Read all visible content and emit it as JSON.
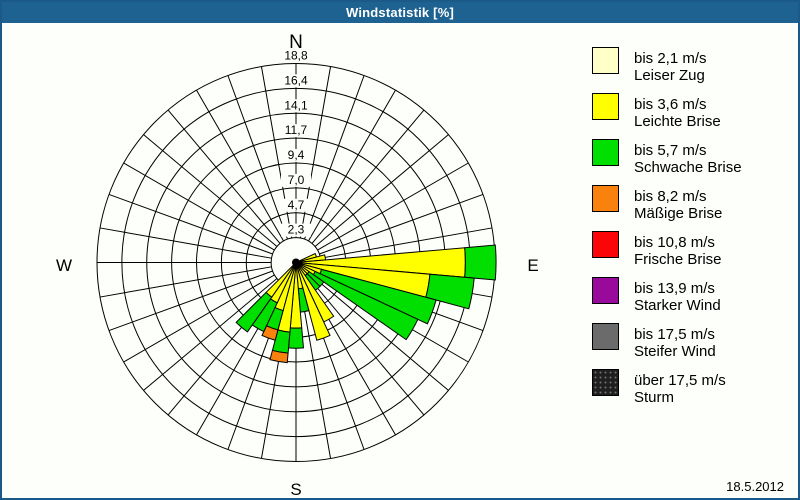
{
  "window": {
    "title": "Windstatistik [%]",
    "date": "18.5.2012"
  },
  "colors": {
    "titlebar": "#1D6291",
    "frame_border": "#1B5A88",
    "background": "#FDFFFB",
    "grid": "#000000",
    "text": "#000000"
  },
  "chart_data": {
    "type": "windrose-stacked-polar-bar",
    "title": "Windstatistik [%]",
    "units": "percent",
    "sector_width_deg": 10,
    "grid": {
      "ring_values": [
        2.35,
        4.7,
        7.05,
        9.4,
        11.75,
        14.1,
        16.45,
        18.8
      ],
      "ring_labels": [
        "2,3",
        "4,7",
        "7,0",
        "9,4",
        "11,7",
        "14,1",
        "16,4",
        "18,8"
      ],
      "max_value": 18.8,
      "spoke_step_deg": 10
    },
    "cardinals": {
      "north": "N",
      "east": "E",
      "south": "S",
      "west": "W"
    },
    "speed_classes": [
      {
        "label": "bis 2,1 m/s",
        "name": "Leiser Zug",
        "color": "#FFFFC8",
        "pattern": "solid"
      },
      {
        "label": "bis 3,6 m/s",
        "name": "Leichte Brise",
        "color": "#FFFF00",
        "pattern": "solid"
      },
      {
        "label": "bis 5,7 m/s",
        "name": "Schwache Brise",
        "color": "#00DF00",
        "pattern": "solid"
      },
      {
        "label": "bis 8,2 m/s",
        "name": "Mäßige Brise",
        "color": "#F9820E",
        "pattern": "solid"
      },
      {
        "label": "bis 10,8 m/s",
        "name": "Frische Brise",
        "color": "#FA0508",
        "pattern": "solid"
      },
      {
        "label": "bis 13,9 m/s",
        "name": "Starker Wind",
        "color": "#99099B",
        "pattern": "solid"
      },
      {
        "label": "bis 17,5 m/s",
        "name": "Steifer Wind",
        "color": "#6B6B6B",
        "pattern": "solid"
      },
      {
        "label": "über 17,5 m/s",
        "name": "Sturm",
        "color": "#1F1F1F",
        "pattern": "dotted"
      }
    ],
    "sectors": [
      {
        "direction_deg": 70,
        "class_values": [
          0,
          2.0,
          0,
          0,
          0,
          0,
          0,
          0
        ]
      },
      {
        "direction_deg": 80,
        "class_values": [
          0,
          2.8,
          0,
          0,
          0,
          0,
          0,
          0
        ]
      },
      {
        "direction_deg": 90,
        "class_values": [
          0,
          16.0,
          2.9,
          0,
          0,
          0,
          0,
          0
        ]
      },
      {
        "direction_deg": 100,
        "class_values": [
          0,
          12.7,
          4.2,
          0,
          0,
          0,
          0,
          0
        ]
      },
      {
        "direction_deg": 110,
        "class_values": [
          0,
          2.5,
          11.2,
          0,
          0,
          0,
          0,
          0
        ]
      },
      {
        "direction_deg": 120,
        "class_values": [
          0,
          2.0,
          10.7,
          0,
          0,
          0,
          0,
          0
        ]
      },
      {
        "direction_deg": 130,
        "class_values": [
          0,
          1.5,
          1.7,
          0,
          0,
          0,
          0,
          0
        ]
      },
      {
        "direction_deg": 140,
        "class_values": [
          0,
          1.5,
          1.7,
          0,
          0,
          0,
          0,
          0
        ]
      },
      {
        "direction_deg": 150,
        "class_values": [
          0,
          6.2,
          0,
          0,
          0,
          0,
          0,
          0
        ]
      },
      {
        "direction_deg": 160,
        "class_values": [
          0,
          7.6,
          0,
          0,
          0,
          0,
          0,
          0
        ]
      },
      {
        "direction_deg": 170,
        "class_values": [
          0,
          2.5,
          2.2,
          0,
          0,
          0,
          0,
          0
        ]
      },
      {
        "direction_deg": 180,
        "class_values": [
          0,
          6.2,
          1.9,
          0,
          0,
          0,
          0,
          0
        ]
      },
      {
        "direction_deg": 190,
        "class_values": [
          0,
          6.6,
          2.0,
          0.9,
          0,
          0,
          0,
          0
        ]
      },
      {
        "direction_deg": 200,
        "class_values": [
          0,
          4.7,
          1.9,
          1.0,
          0,
          0,
          0,
          0
        ]
      },
      {
        "direction_deg": 210,
        "class_values": [
          0,
          4.2,
          3.0,
          0,
          0,
          0,
          0,
          0
        ]
      },
      {
        "direction_deg": 220,
        "class_values": [
          0,
          4.0,
          4.0,
          0,
          0,
          0,
          0,
          0
        ]
      }
    ]
  }
}
